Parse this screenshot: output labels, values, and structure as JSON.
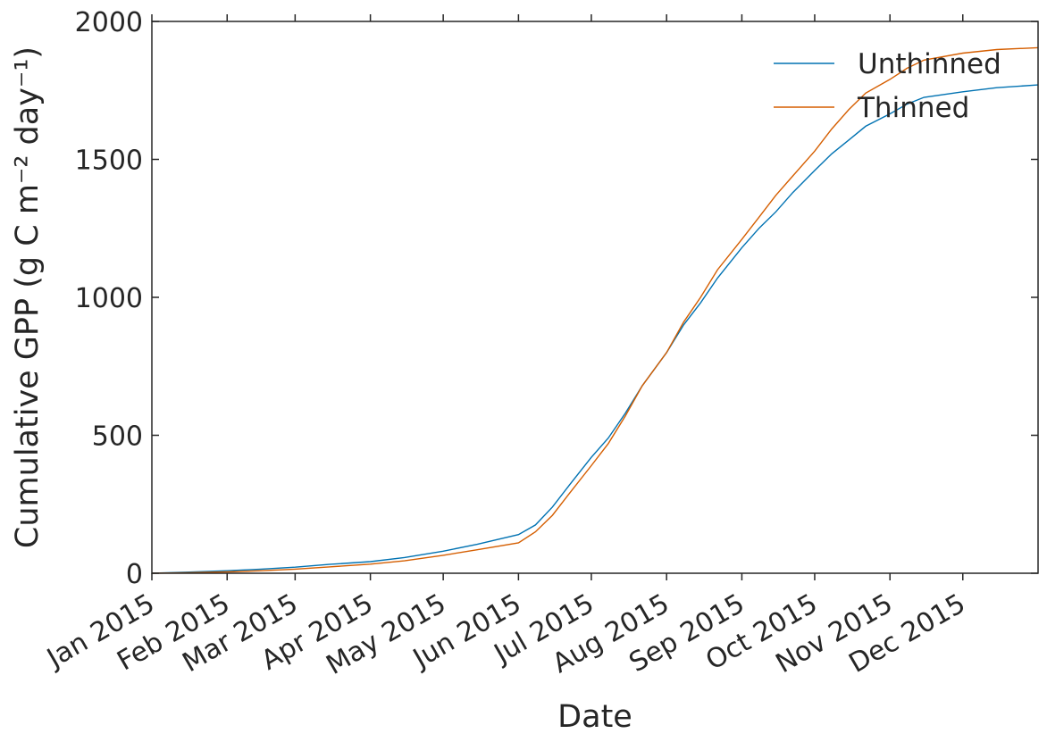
{
  "chart_data": {
    "type": "line",
    "xlabel": "Date",
    "ylabel": "Cumulative GPP (g C m⁻² day⁻¹)",
    "ylim": [
      0,
      2000
    ],
    "xlim": [
      "2015-01-01",
      "2016-01-01"
    ],
    "y_ticks": [
      0,
      500,
      1000,
      1500,
      2000
    ],
    "x_ticks": [
      {
        "date": "2015-01-01",
        "label": "Jan 2015"
      },
      {
        "date": "2015-02-01",
        "label": "Feb 2015"
      },
      {
        "date": "2015-03-01",
        "label": "Mar 2015"
      },
      {
        "date": "2015-04-01",
        "label": "Apr 2015"
      },
      {
        "date": "2015-05-01",
        "label": "May 2015"
      },
      {
        "date": "2015-06-01",
        "label": "Jun 2015"
      },
      {
        "date": "2015-07-01",
        "label": "Jul 2015"
      },
      {
        "date": "2015-08-01",
        "label": "Aug 2015"
      },
      {
        "date": "2015-09-01",
        "label": "Sep 2015"
      },
      {
        "date": "2015-10-01",
        "label": "Oct 2015"
      },
      {
        "date": "2015-11-01",
        "label": "Nov 2015"
      },
      {
        "date": "2015-12-01",
        "label": "Dec 2015"
      }
    ],
    "grid": false,
    "legend_position": "top-right",
    "series": [
      {
        "name": "Unthinned",
        "color": "#0072B2",
        "x": [
          "2015-01-01",
          "2015-01-15",
          "2015-02-01",
          "2015-02-15",
          "2015-03-01",
          "2015-03-15",
          "2015-04-01",
          "2015-04-15",
          "2015-05-01",
          "2015-05-15",
          "2015-06-01",
          "2015-06-08",
          "2015-06-15",
          "2015-06-22",
          "2015-07-01",
          "2015-07-08",
          "2015-07-15",
          "2015-07-22",
          "2015-08-01",
          "2015-08-08",
          "2015-08-15",
          "2015-08-22",
          "2015-09-01",
          "2015-09-08",
          "2015-09-15",
          "2015-09-22",
          "2015-10-01",
          "2015-10-08",
          "2015-10-15",
          "2015-10-22",
          "2015-11-01",
          "2015-11-08",
          "2015-11-15",
          "2015-12-01",
          "2015-12-15",
          "2016-01-01"
        ],
        "values": [
          0,
          4,
          9,
          15,
          22,
          32,
          42,
          57,
          80,
          105,
          140,
          175,
          240,
          320,
          420,
          490,
          580,
          680,
          800,
          900,
          980,
          1070,
          1180,
          1250,
          1310,
          1380,
          1460,
          1520,
          1570,
          1620,
          1665,
          1700,
          1725,
          1745,
          1760,
          1770
        ]
      },
      {
        "name": "Thinned",
        "color": "#D55E00",
        "x": [
          "2015-01-01",
          "2015-01-15",
          "2015-02-01",
          "2015-02-15",
          "2015-03-01",
          "2015-03-15",
          "2015-04-01",
          "2015-04-15",
          "2015-05-01",
          "2015-05-15",
          "2015-06-01",
          "2015-06-08",
          "2015-06-15",
          "2015-06-22",
          "2015-07-01",
          "2015-07-08",
          "2015-07-15",
          "2015-07-22",
          "2015-08-01",
          "2015-08-08",
          "2015-08-15",
          "2015-08-22",
          "2015-09-01",
          "2015-09-08",
          "2015-09-15",
          "2015-09-22",
          "2015-10-01",
          "2015-10-08",
          "2015-10-15",
          "2015-10-22",
          "2015-11-01",
          "2015-11-08",
          "2015-11-15",
          "2015-12-01",
          "2015-12-15",
          "2016-01-01"
        ],
        "values": [
          0,
          2,
          5,
          9,
          15,
          23,
          33,
          45,
          65,
          85,
          110,
          150,
          210,
          290,
          390,
          470,
          570,
          680,
          800,
          910,
          1000,
          1100,
          1210,
          1290,
          1370,
          1440,
          1530,
          1610,
          1680,
          1740,
          1790,
          1830,
          1860,
          1885,
          1898,
          1905
        ]
      }
    ]
  }
}
